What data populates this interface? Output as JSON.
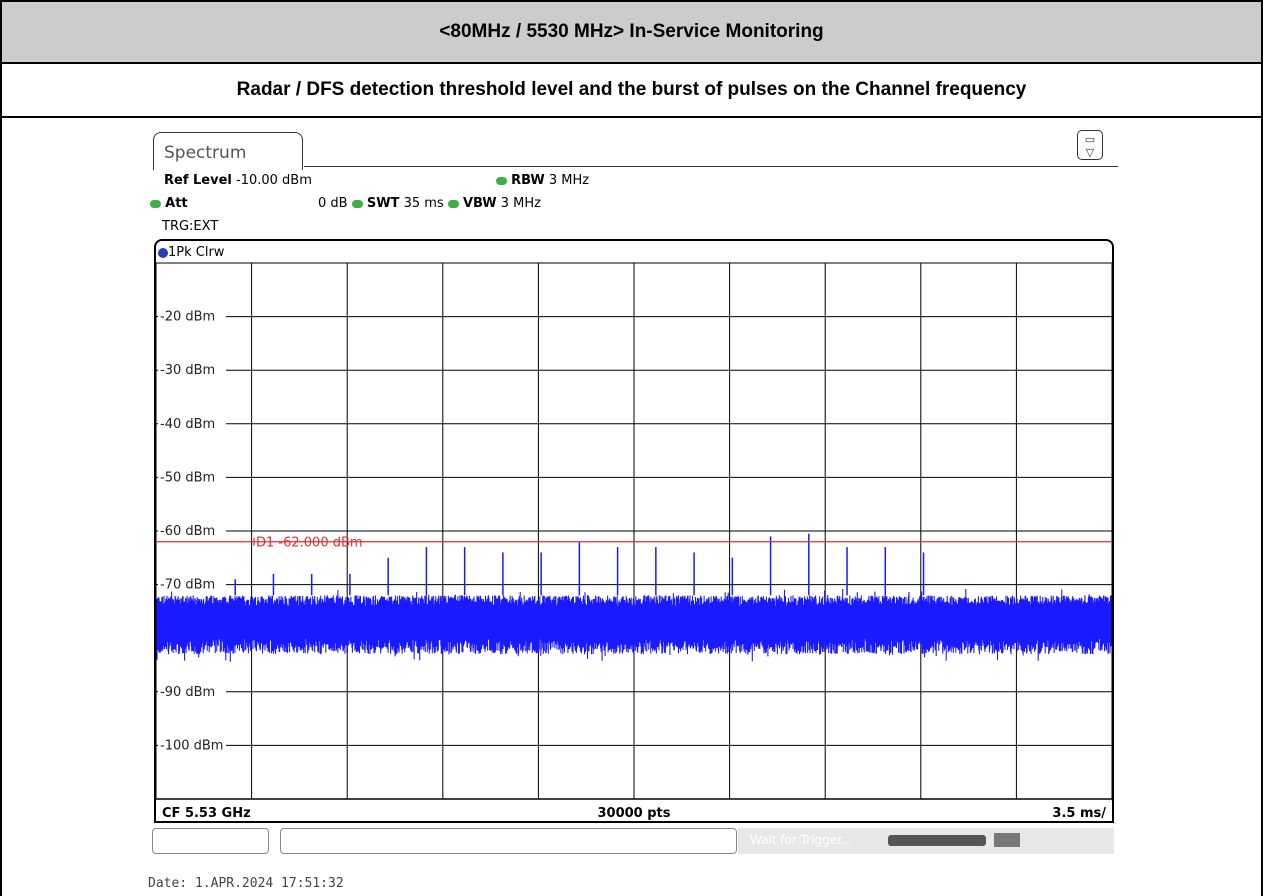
{
  "report": {
    "title": "<80MHz / 5530 MHz> In-Service Monitoring",
    "subtitle": "Radar / DFS detection threshold level and the burst of pulses on the Channel frequency"
  },
  "analyzer": {
    "tab_label": "Spectrum",
    "ref_level_label": "Ref Level",
    "ref_level_value": "-10.00 dBm",
    "att_label": "Att",
    "att_value": "0 dB",
    "swt_label": "SWT",
    "swt_value": "35 ms",
    "rbw_label": "RBW",
    "rbw_value": "3 MHz",
    "vbw_label": "VBW",
    "vbw_value": "3 MHz",
    "trigger": "TRG:EXT",
    "trace_label": "1Pk Clrw",
    "footer_left": "CF 5.53 GHz",
    "footer_center": "30000 pts",
    "footer_right": "3.5 ms/",
    "status_text": "Wait for Trigger...",
    "date": "Date: 1.APR.2024  17:51:32"
  },
  "chart_data": {
    "type": "line",
    "title": "",
    "xlabel": "",
    "ylabel": "",
    "ylim": [
      -110,
      -10
    ],
    "xlim": [
      0,
      35
    ],
    "x_unit": "ms",
    "grid": true,
    "y_tick_labels": [
      "-20 dBm",
      "-30 dBm",
      "-40 dBm",
      "-50 dBm",
      "-60 dBm",
      "-70 dBm",
      "-90 dBm",
      "-100 dBm"
    ],
    "y_ticks": [
      -20,
      -30,
      -40,
      -50,
      -60,
      -70,
      -90,
      -100
    ],
    "threshold_line": {
      "label": "D1 -62.000 dBm",
      "value": -62.0,
      "color": "#e03030"
    },
    "noise_floor": {
      "mean": -76.5,
      "low": -83,
      "high": -72
    },
    "pulses": {
      "x": [
        2.9,
        4.3,
        5.7,
        7.1,
        8.5,
        9.9,
        11.3,
        12.7,
        14.1,
        15.5,
        16.9,
        18.3,
        19.7,
        21.1,
        22.5,
        23.9,
        25.3,
        26.7,
        28.1
      ],
      "y": [
        -69,
        -68,
        -68,
        -68,
        -65,
        -63,
        -63,
        -64,
        -64,
        -62,
        -63,
        -63,
        -64,
        -65,
        -61,
        -60.5,
        -63,
        -63,
        -64
      ]
    },
    "trace_color": "#1a1aff"
  }
}
